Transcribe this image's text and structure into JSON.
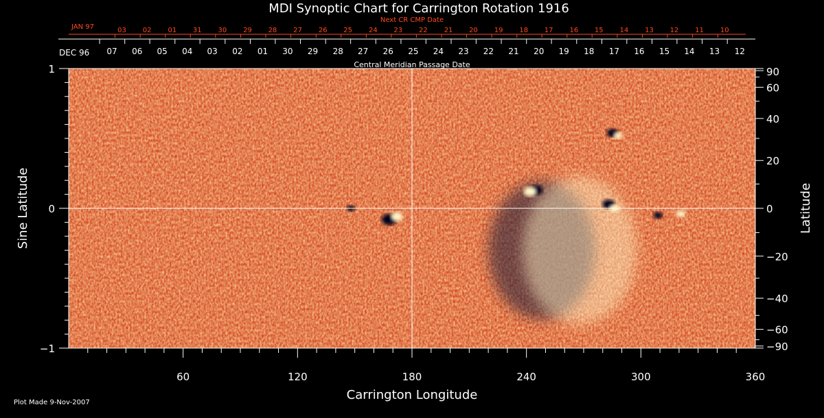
{
  "chart_data": {
    "type": "heatmap",
    "title": "MDI Synoptic Chart for Carrington Rotation 1916",
    "xlabel": "Carrington Longitude",
    "ylabel_left": "Sine Latitude",
    "ylabel_right": "Latitude",
    "xlim": [
      0,
      360
    ],
    "ylim": [
      -1,
      1
    ],
    "x_ticks": [
      60,
      120,
      180,
      240,
      300,
      360
    ],
    "y_ticks_left": [
      -1,
      0,
      1
    ],
    "y_tick_labels_left": [
      "−1",
      "0",
      "1"
    ],
    "y_ticks_right": [
      90,
      60,
      40,
      20,
      0,
      -20,
      -40,
      -60,
      -90
    ],
    "y_tick_labels_right": [
      "90",
      "60",
      "40",
      "20",
      "0",
      "−20",
      "−40",
      "−60",
      "−90"
    ],
    "top_axis_title": "Central Meridian Passage Date",
    "top_axis_month_label": "DEC 96",
    "top_axis_dates": [
      "07",
      "06",
      "05",
      "04",
      "03",
      "02",
      "01",
      "30",
      "29",
      "28",
      "27",
      "26",
      "25",
      "24",
      "23",
      "22",
      "21",
      "20",
      "19",
      "18",
      "17",
      "16",
      "15",
      "14",
      "13",
      "12"
    ],
    "top_axis_date_longitudes": [
      22.7,
      35.9,
      49.0,
      62.2,
      75.3,
      88.5,
      101.7,
      114.8,
      128.0,
      141.2,
      154.3,
      167.5,
      180.7,
      193.8,
      207.0,
      220.1,
      233.3,
      246.5,
      259.6,
      272.8,
      286.0,
      299.1,
      312.3,
      325.4,
      338.6,
      351.8
    ],
    "next_axis_title": "Next CR CMP Date",
    "next_axis_month_label": "JAN 97",
    "next_axis_dates": [
      "03",
      "02",
      "01",
      "31",
      "30",
      "29",
      "28",
      "27",
      "26",
      "25",
      "24",
      "23",
      "22",
      "21",
      "20",
      "19",
      "18",
      "17",
      "16",
      "15",
      "14",
      "13",
      "12",
      "11",
      "10"
    ],
    "next_axis_date_longitudes": [
      27.9,
      41.1,
      54.3,
      67.4,
      80.6,
      93.8,
      106.9,
      120.1,
      133.3,
      146.4,
      159.6,
      172.7,
      185.9,
      199.1,
      212.2,
      225.4,
      238.6,
      251.7,
      264.9,
      278.0,
      291.2,
      304.4,
      317.5,
      330.7,
      343.9
    ],
    "reference_lines": {
      "longitude": 180,
      "sine_latitude": 0
    },
    "features": [
      {
        "longitude": 168,
        "sine_latitude": -0.08,
        "polarity": "negative",
        "size": 1.0
      },
      {
        "longitude": 172,
        "sine_latitude": -0.06,
        "polarity": "positive",
        "size": 0.7
      },
      {
        "longitude": 245,
        "sine_latitude": 0.13,
        "polarity": "negative",
        "size": 0.8
      },
      {
        "longitude": 242,
        "sine_latitude": 0.12,
        "polarity": "positive",
        "size": 0.8
      },
      {
        "longitude": 283,
        "sine_latitude": 0.03,
        "polarity": "negative",
        "size": 0.7
      },
      {
        "longitude": 286,
        "sine_latitude": 0.0,
        "polarity": "positive",
        "size": 0.5
      },
      {
        "longitude": 285,
        "sine_latitude": 0.54,
        "polarity": "negative",
        "size": 0.6
      },
      {
        "longitude": 288,
        "sine_latitude": 0.52,
        "polarity": "positive",
        "size": 0.4
      },
      {
        "longitude": 309,
        "sine_latitude": -0.05,
        "polarity": "negative",
        "size": 0.4
      },
      {
        "longitude": 321,
        "sine_latitude": -0.04,
        "polarity": "positive",
        "size": 0.4
      },
      {
        "longitude": 148,
        "sine_latitude": 0.0,
        "polarity": "negative",
        "size": 0.3
      }
    ],
    "active_regions": [
      {
        "longitude": 248,
        "sine_latitude": -0.3,
        "radius_deg": 28,
        "kind": "negative"
      },
      {
        "longitude": 268,
        "sine_latitude": -0.3,
        "radius_deg": 30,
        "kind": "positive"
      }
    ],
    "colors": {
      "background": "#000000",
      "field_base": "#ef4a10",
      "positive": "#fff6c8",
      "negative": "#1a1a3a",
      "date_axis_next": "#ff4a1e",
      "text": "#ffffff"
    }
  },
  "footer": {
    "plot_made": "Plot Made  9-Nov-2007"
  }
}
